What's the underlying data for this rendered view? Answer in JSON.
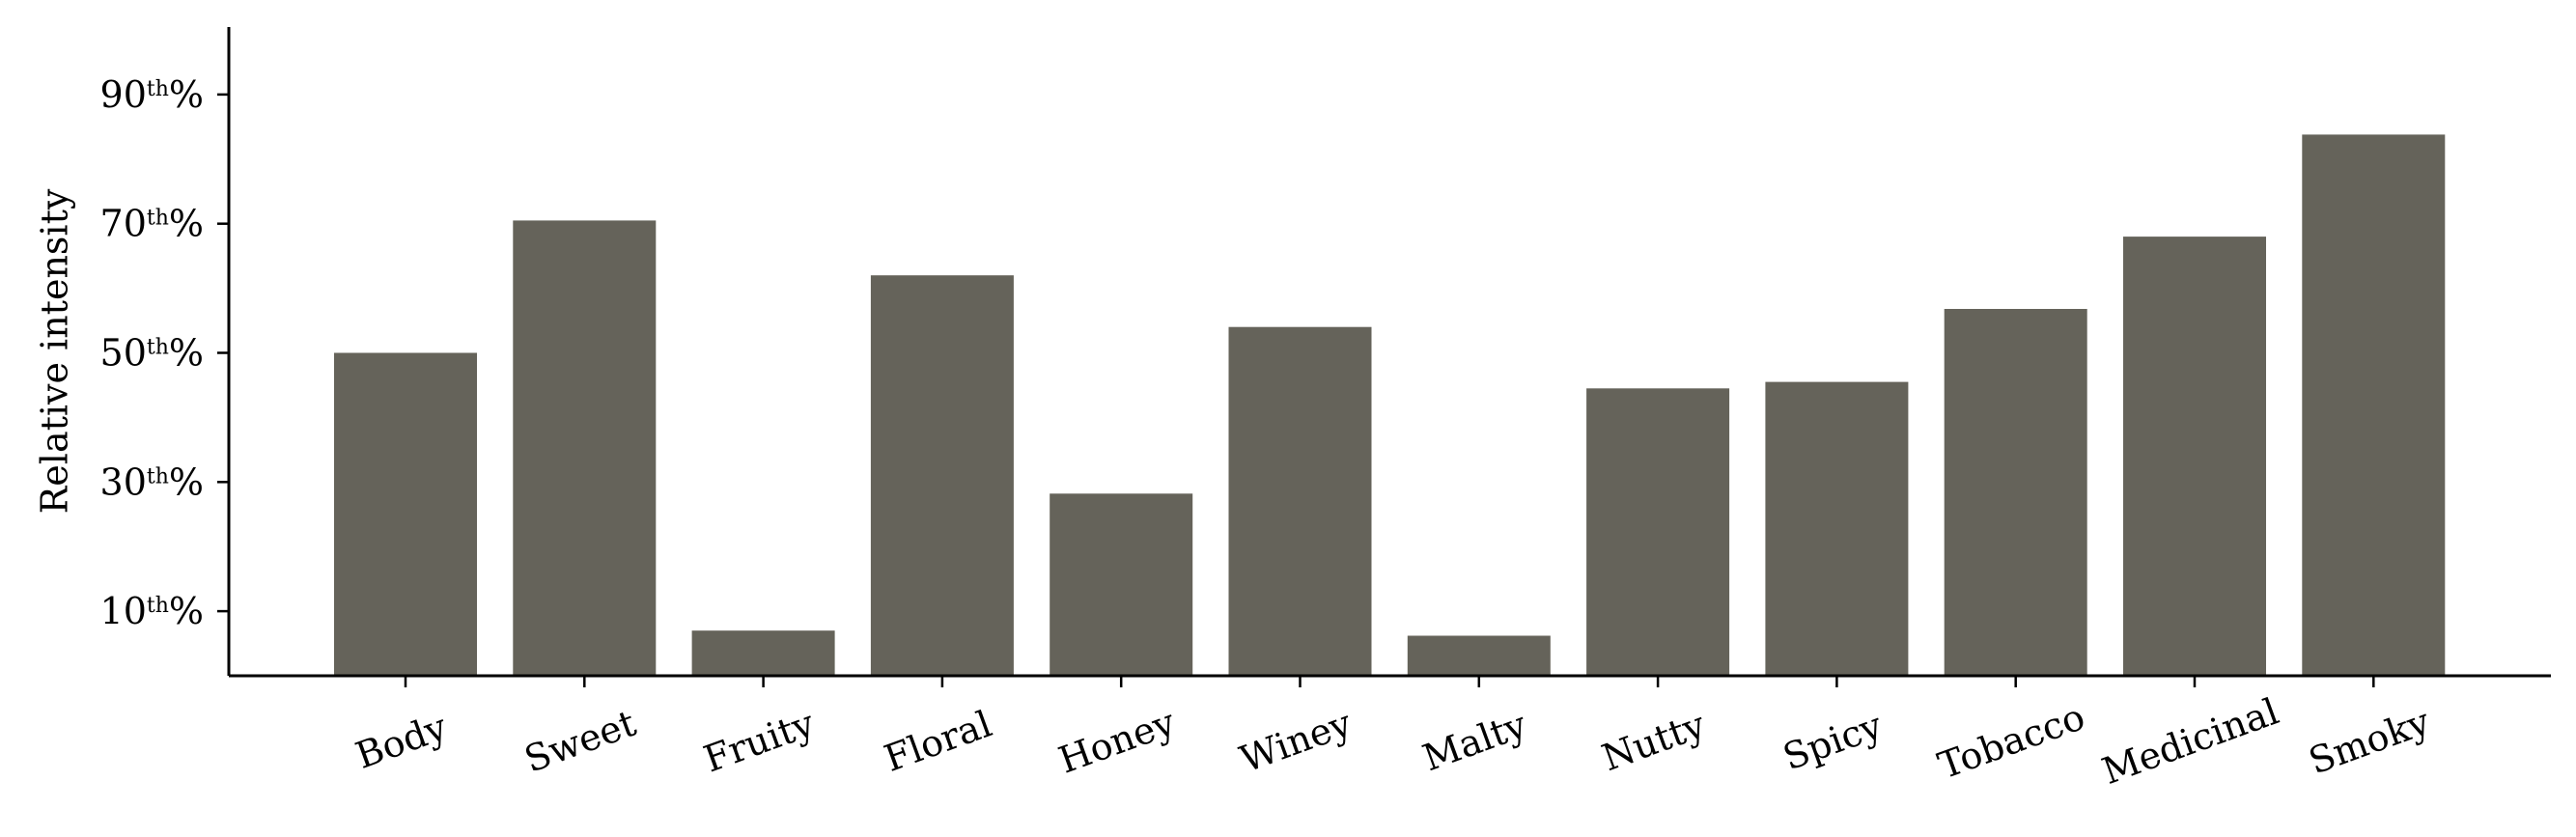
{
  "chart_data": {
    "type": "bar",
    "categories": [
      "Body",
      "Sweet",
      "Fruity",
      "Floral",
      "Honey",
      "Winey",
      "Malty",
      "Nutty",
      "Spicy",
      "Tobacco",
      "Medicinal",
      "Smoky"
    ],
    "values": [
      50,
      70.5,
      7,
      62,
      28.2,
      54,
      6.2,
      44.5,
      45.5,
      56.8,
      68,
      83.8
    ],
    "ylabel": "Relative intensity",
    "xlabel": "",
    "ylim": [
      0,
      100
    ],
    "yticks": [
      {
        "value": 10,
        "num": "10",
        "sup": "th",
        "suffix": "%"
      },
      {
        "value": 30,
        "num": "30",
        "sup": "th",
        "suffix": "%"
      },
      {
        "value": 50,
        "num": "50",
        "sup": "th",
        "suffix": "%"
      },
      {
        "value": 70,
        "num": "70",
        "sup": "th",
        "suffix": "%"
      },
      {
        "value": 90,
        "num": "90",
        "sup": "th",
        "suffix": "%"
      }
    ],
    "bar_color": "#65635a",
    "grid": false,
    "x_tick_rotation_deg": -20
  }
}
